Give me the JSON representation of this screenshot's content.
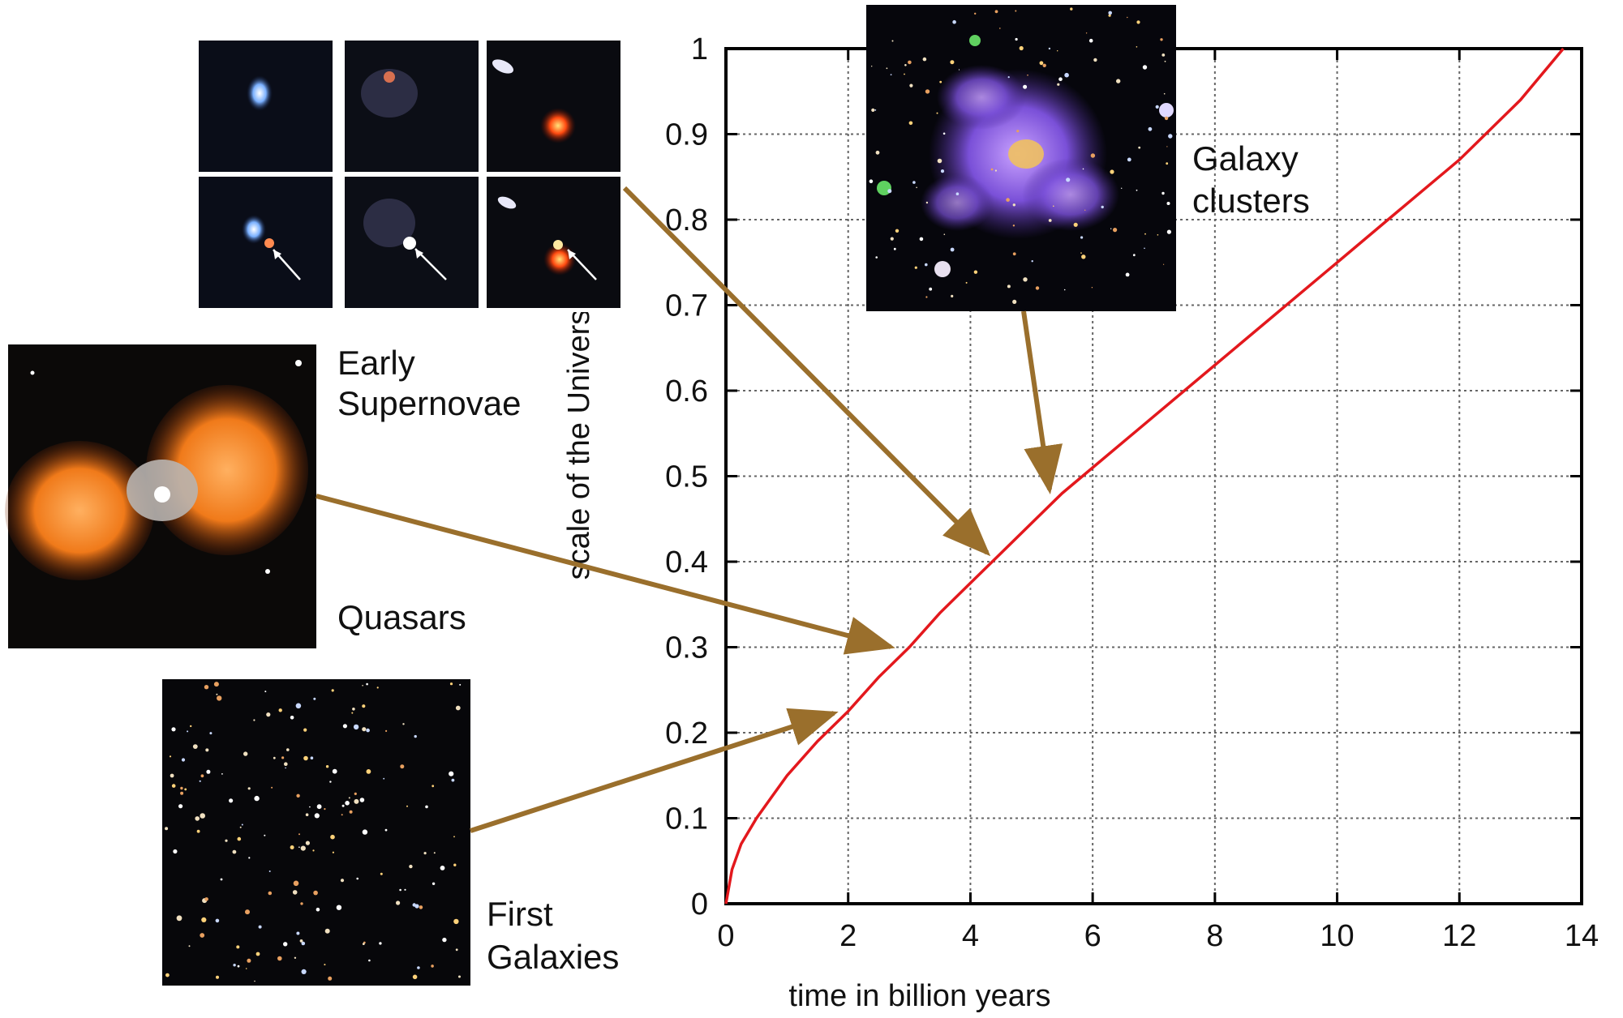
{
  "chart_data": {
    "type": "line",
    "title": "",
    "xlabel": "time in billion years",
    "ylabel": "scale of the Universe",
    "xlim": [
      0,
      14
    ],
    "ylim": [
      0,
      1
    ],
    "x_ticks": [
      "0",
      "2",
      "4",
      "6",
      "8",
      "10",
      "12",
      "14"
    ],
    "y_ticks": [
      "0",
      "0.1",
      "0.2",
      "0.3",
      "0.4",
      "0.5",
      "0.6",
      "0.7",
      "0.8",
      "0.9",
      "1"
    ],
    "grid": true,
    "line_color": "#e3181d",
    "series": [
      {
        "x": [
          0.0,
          0.1,
          0.25,
          0.5,
          0.75,
          1.0,
          1.5,
          2.0,
          2.5,
          3.0,
          3.5,
          4.0,
          4.5,
          5.0,
          5.5,
          6.0,
          7.0,
          8.0,
          9.0,
          10.0,
          11.0,
          12.0,
          13.0,
          13.7
        ],
        "y": [
          0.0,
          0.04,
          0.07,
          0.1,
          0.125,
          0.15,
          0.19,
          0.225,
          0.265,
          0.3,
          0.34,
          0.375,
          0.41,
          0.445,
          0.48,
          0.51,
          0.57,
          0.63,
          0.69,
          0.75,
          0.81,
          0.87,
          0.94,
          1.0
        ]
      }
    ],
    "annotations": [
      {
        "label": "First Galaxies",
        "x": 1.8,
        "y": 0.23
      },
      {
        "label": "Quasars",
        "x": 2.75,
        "y": 0.3
      },
      {
        "label": "Early Supernovae",
        "x": 4.3,
        "y": 0.4
      },
      {
        "label": "Galaxy clusters",
        "x": 5.4,
        "y": 0.47
      }
    ],
    "arrow_color": "#9a6f2c"
  },
  "labels": {
    "early_line1": "Early",
    "early_line2": "Supernovae",
    "quasars": "Quasars",
    "first_line1": "First",
    "first_line2": "Galaxies",
    "clusters_line1": "Galaxy",
    "clusters_line2": "clusters"
  }
}
